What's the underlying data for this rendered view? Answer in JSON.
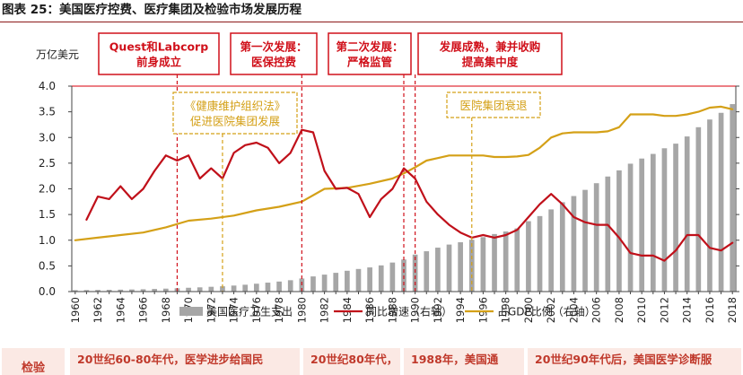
{
  "page_title": "图表 25：美国医疗控费、医疗集团及检验市场发展历程",
  "chart_data": {
    "type": "bar",
    "unit_label": "万亿美元",
    "x_labels": [
      "1960",
      "1962",
      "1964",
      "1966",
      "1968",
      "1970",
      "1972",
      "1974",
      "1976",
      "1978",
      "1980",
      "1982",
      "1984",
      "1986",
      "1988",
      "1990",
      "1992",
      "1994",
      "1996",
      "1998",
      "2000",
      "2002",
      "2004",
      "2006",
      "2008",
      "2010",
      "2012",
      "2014",
      "2016",
      "2018"
    ],
    "x_start": 1960,
    "x_end": 2018,
    "y_left": {
      "min": 0,
      "max": 4.0,
      "ticks": [
        "0.0",
        "0.5",
        "1.0",
        "1.5",
        "2.0",
        "2.5",
        "3.0",
        "3.5",
        "4.0"
      ]
    },
    "series": [
      {
        "name": "美国医疗卫生支出",
        "type": "bar",
        "color": "#a6a6a6",
        "axis": "left",
        "x": [
          1960,
          1961,
          1962,
          1963,
          1964,
          1965,
          1966,
          1967,
          1968,
          1969,
          1970,
          1971,
          1972,
          1973,
          1974,
          1975,
          1976,
          1977,
          1978,
          1979,
          1980,
          1981,
          1982,
          1983,
          1984,
          1985,
          1986,
          1987,
          1988,
          1989,
          1990,
          1991,
          1992,
          1993,
          1994,
          1995,
          1996,
          1997,
          1998,
          1999,
          2000,
          2001,
          2002,
          2003,
          2004,
          2005,
          2006,
          2007,
          2008,
          2009,
          2010,
          2011,
          2012,
          2013,
          2014,
          2015,
          2016,
          2017,
          2018
        ],
        "values": [
          0.027,
          0.029,
          0.031,
          0.034,
          0.037,
          0.041,
          0.045,
          0.051,
          0.057,
          0.064,
          0.074,
          0.082,
          0.093,
          0.103,
          0.117,
          0.133,
          0.153,
          0.174,
          0.195,
          0.221,
          0.255,
          0.295,
          0.33,
          0.365,
          0.405,
          0.44,
          0.47,
          0.51,
          0.565,
          0.625,
          0.72,
          0.785,
          0.855,
          0.915,
          0.96,
          1.01,
          1.06,
          1.12,
          1.17,
          1.23,
          1.37,
          1.47,
          1.6,
          1.74,
          1.86,
          1.98,
          2.11,
          2.24,
          2.36,
          2.49,
          2.59,
          2.68,
          2.79,
          2.88,
          3.02,
          3.2,
          3.35,
          3.48,
          3.65
        ]
      },
      {
        "name": "同比增速（右轴）",
        "type": "line",
        "color": "#c0101a",
        "axis": "right",
        "x": [
          1961,
          1962,
          1963,
          1964,
          1965,
          1966,
          1967,
          1968,
          1969,
          1970,
          1971,
          1972,
          1973,
          1974,
          1975,
          1976,
          1977,
          1978,
          1979,
          1980,
          1981,
          1982,
          1983,
          1984,
          1985,
          1986,
          1987,
          1988,
          1989,
          1990,
          1991,
          1992,
          1993,
          1994,
          1995,
          1996,
          1997,
          1998,
          1999,
          2000,
          2001,
          2002,
          2003,
          2004,
          2005,
          2006,
          2007,
          2008,
          2009,
          2010,
          2011,
          2012,
          2013,
          2014,
          2015,
          2016,
          2017,
          2018
        ],
        "values": [
          1.4,
          1.85,
          1.8,
          2.05,
          1.8,
          2.0,
          2.35,
          2.65,
          2.55,
          2.65,
          2.2,
          2.4,
          2.2,
          2.7,
          2.85,
          2.9,
          2.8,
          2.5,
          2.7,
          3.15,
          3.1,
          2.35,
          2.0,
          2.02,
          1.9,
          1.45,
          1.8,
          2.0,
          2.4,
          2.2,
          1.75,
          1.5,
          1.3,
          1.15,
          1.05,
          1.1,
          1.05,
          1.1,
          1.2,
          1.45,
          1.7,
          1.9,
          1.7,
          1.45,
          1.35,
          1.3,
          1.3,
          1.05,
          0.75,
          0.7,
          0.7,
          0.6,
          0.8,
          1.1,
          1.1,
          0.85,
          0.8,
          0.95
        ]
      },
      {
        "name": "占GDP比例（右轴）",
        "type": "line",
        "color": "#d4a017",
        "axis": "right",
        "x": [
          1960,
          1962,
          1964,
          1966,
          1968,
          1970,
          1972,
          1974,
          1976,
          1978,
          1980,
          1982,
          1984,
          1986,
          1988,
          1989,
          1990,
          1991,
          1992,
          1993,
          1994,
          1995,
          1996,
          1997,
          1998,
          1999,
          2000,
          2001,
          2002,
          2003,
          2004,
          2005,
          2006,
          2007,
          2008,
          2009,
          2010,
          2011,
          2012,
          2013,
          2014,
          2015,
          2016,
          2017,
          2018
        ],
        "values": [
          1.0,
          1.05,
          1.1,
          1.15,
          1.25,
          1.38,
          1.42,
          1.48,
          1.58,
          1.65,
          1.75,
          2.0,
          2.02,
          2.1,
          2.2,
          2.3,
          2.42,
          2.55,
          2.6,
          2.65,
          2.65,
          2.65,
          2.65,
          2.62,
          2.62,
          2.63,
          2.66,
          2.8,
          3.0,
          3.08,
          3.1,
          3.1,
          3.1,
          3.12,
          3.2,
          3.45,
          3.45,
          3.45,
          3.42,
          3.42,
          3.45,
          3.5,
          3.58,
          3.6,
          3.55
        ]
      }
    ],
    "annotations": [
      {
        "year": 1969,
        "label_lines": [
          "Quest和Labcorp",
          "前身成立"
        ],
        "style": "red"
      },
      {
        "year": 1980,
        "label_lines": [
          "第一次发展：",
          "医保控费"
        ],
        "style": "red"
      },
      {
        "year": 1989,
        "label_lines": [
          "第二次发展：",
          "严格监管"
        ],
        "style": "red"
      },
      {
        "year": 1990,
        "label_lines": [
          "发展成熟，兼并收购",
          "提高集中度"
        ],
        "style": "red"
      },
      {
        "year": 1973,
        "label_lines": [
          "《健康维护组织法》",
          "促进医院集团发展"
        ],
        "style": "gold"
      },
      {
        "year": 1995,
        "label_lines": [
          "医院集团衰退"
        ],
        "style": "gold"
      }
    ],
    "legend_position": "bottom"
  },
  "bottom_table": {
    "header": "检验",
    "items": [
      "20世纪60-80年代，医学进步给国民",
      "20世纪80年代，",
      "1988年，美国通",
      "20世纪90年代后，美国医学诊断服"
    ]
  }
}
